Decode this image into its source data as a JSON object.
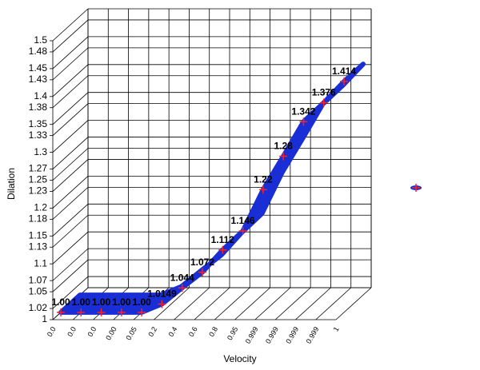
{
  "chart_data": {
    "type": "ribbon3d",
    "x_label": "Velocity",
    "y_label": "Dilation",
    "categories": [
      "0.0",
      "0.0",
      "0.0",
      "0.00",
      "0.05",
      "0.2",
      "0.4",
      "0.6",
      "0.8",
      "0.95",
      "0.999",
      "0.999",
      "0.999",
      "0.999",
      "1"
    ],
    "series": [
      {
        "color": "#1a2ed6",
        "marker_color": "#ff2020",
        "values": [
          1,
          1,
          1,
          1,
          1,
          1.0149,
          1.044,
          1.072,
          1.112,
          1.146,
          1.22,
          1.28,
          1.342,
          1.376,
          1.414
        ],
        "value_labels": [
          "1.00",
          "1.00",
          "1.00",
          "1.00",
          "1.00",
          "1.0149",
          "1.044",
          "1.072",
          "1.112",
          "1.146",
          "1.22",
          "1.28",
          "1.342",
          "1.376",
          "1.414"
        ]
      }
    ],
    "ylim": [
      1,
      1.5
    ],
    "yticks": [
      1,
      1.02,
      1.05,
      1.07,
      1.1,
      1.13,
      1.15,
      1.18,
      1.2,
      1.23,
      1.25,
      1.27,
      1.3,
      1.33,
      1.35,
      1.38,
      1.4,
      1.43,
      1.45,
      1.48,
      1.5
    ],
    "grid": true
  }
}
